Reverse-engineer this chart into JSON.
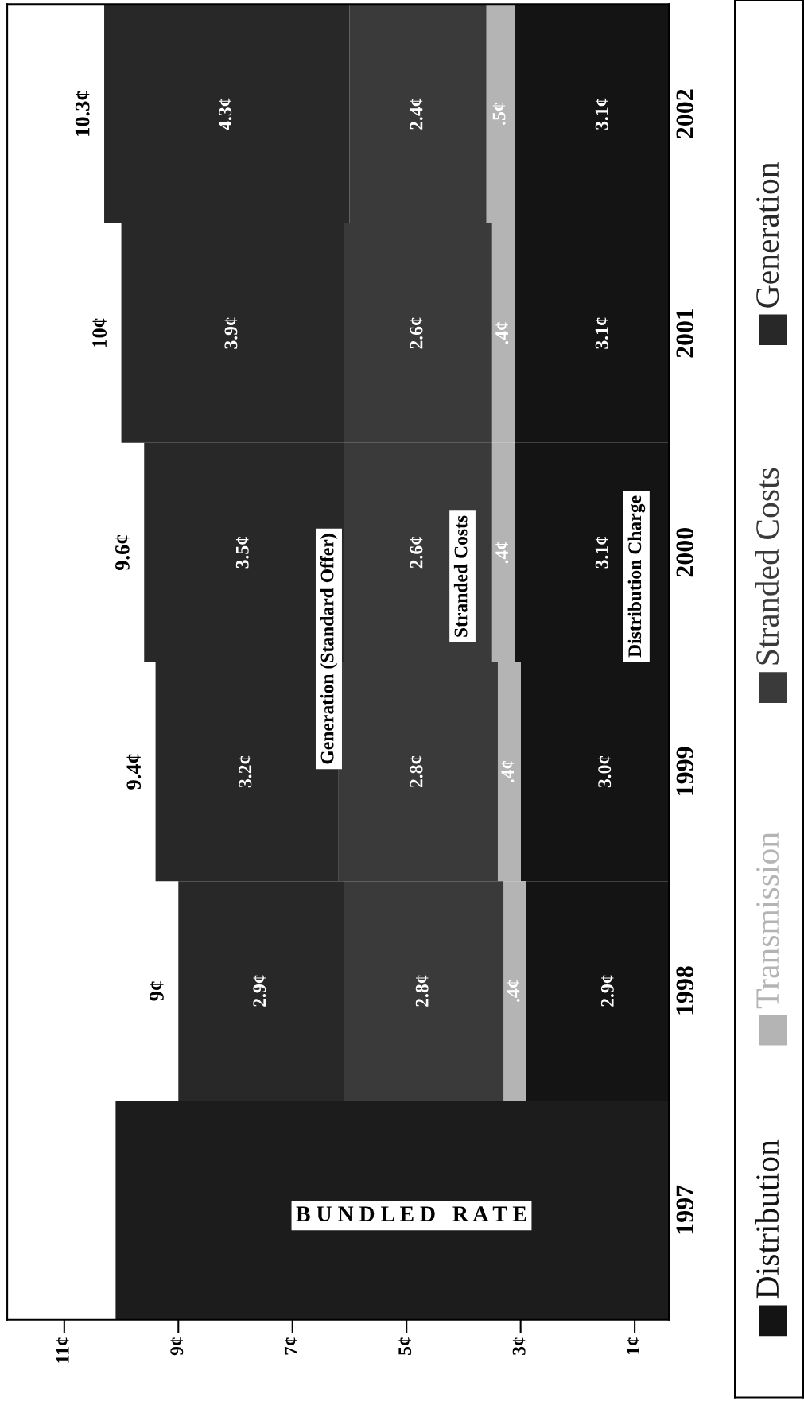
{
  "chart_data": {
    "type": "bar",
    "orientation": "horizontal",
    "stacked": true,
    "categories": [
      "2002",
      "2001",
      "2000",
      "1999",
      "1998",
      "1997"
    ],
    "series": [
      {
        "name": "Distribution",
        "color": "#141414",
        "values": [
          3.1,
          3.1,
          3.1,
          3.0,
          2.9,
          null
        ],
        "value_labels": [
          "3.1¢",
          "3.1¢",
          "3.1¢",
          "3.0¢",
          "2.9¢",
          null
        ]
      },
      {
        "name": "Transmission",
        "color": "#b4b4b4",
        "values": [
          0.5,
          0.4,
          0.4,
          0.4,
          0.4,
          null
        ],
        "value_labels": [
          ".5¢",
          ".4¢",
          ".4¢",
          ".4¢",
          ".4¢",
          null
        ]
      },
      {
        "name": "Stranded Costs",
        "color": "#3a3a3a",
        "values": [
          2.4,
          2.6,
          2.6,
          2.8,
          2.8,
          null
        ],
        "value_labels": [
          "2.4¢",
          "2.6¢",
          "2.6¢",
          "2.8¢",
          "2.8¢",
          null
        ]
      },
      {
        "name": "Generation",
        "color": "#282828",
        "values": [
          4.3,
          3.9,
          3.5,
          3.2,
          2.9,
          null
        ],
        "value_labels": [
          "4.3¢",
          "3.9¢",
          "3.5¢",
          "3.2¢",
          "2.9¢",
          null
        ]
      },
      {
        "color": "#1c1c1c",
        "values": [
          null,
          null,
          null,
          null,
          null,
          10.1
        ]
      }
    ],
    "totals": [
      "10.3¢",
      "10¢",
      "9.6¢",
      "9.4¢",
      "9¢",
      null
    ],
    "xlim": [
      12.0,
      0.4
    ],
    "xticks": [
      {
        "value": 1,
        "label": "1¢"
      },
      {
        "value": 3,
        "label": "3¢"
      },
      {
        "value": 5,
        "label": "5¢"
      },
      {
        "value": 7,
        "label": "7¢"
      },
      {
        "value": 9,
        "label": "9¢"
      },
      {
        "value": 11,
        "label": "11¢"
      }
    ],
    "annotations": [
      "Generation (Standard Offer)",
      "Stranded Costs",
      "Distribution Charge",
      "B U N D L E D   R A T E"
    ],
    "grid": false,
    "legend": "right"
  }
}
